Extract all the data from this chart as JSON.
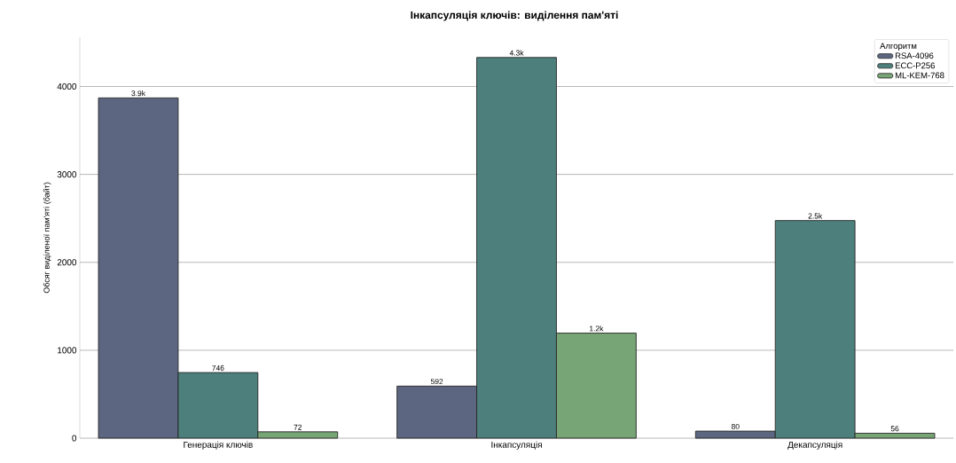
{
  "chart_data": {
    "type": "bar",
    "title": "Інкапсуляція ключів: виділення пам'яті",
    "ylabel": "Обсяг виділеної пам'яті (байт)",
    "legend_title": "Алгоритм",
    "categories": [
      "Генерація ключів",
      "Інкапсуляція",
      "Декапсуляція"
    ],
    "series": [
      {
        "name": "RSA-4096",
        "color": "#5c6680",
        "values": [
          3870,
          592,
          80
        ],
        "value_labels": [
          "3.9k",
          "592",
          "80"
        ]
      },
      {
        "name": "ECC-P256",
        "color": "#4d807c",
        "values": [
          746,
          4330,
          2475
        ],
        "value_labels": [
          "746",
          "4.3k",
          "2.5k"
        ]
      },
      {
        "name": "ML-KEM-768",
        "color": "#77a575",
        "values": [
          72,
          1195,
          56
        ],
        "value_labels": [
          "72",
          "1.2k",
          "56"
        ]
      }
    ],
    "ylim": [
      0,
      4560
    ],
    "yticks": [
      0,
      1000,
      2000,
      3000,
      4000
    ],
    "grid": "y",
    "legend": "top right"
  }
}
